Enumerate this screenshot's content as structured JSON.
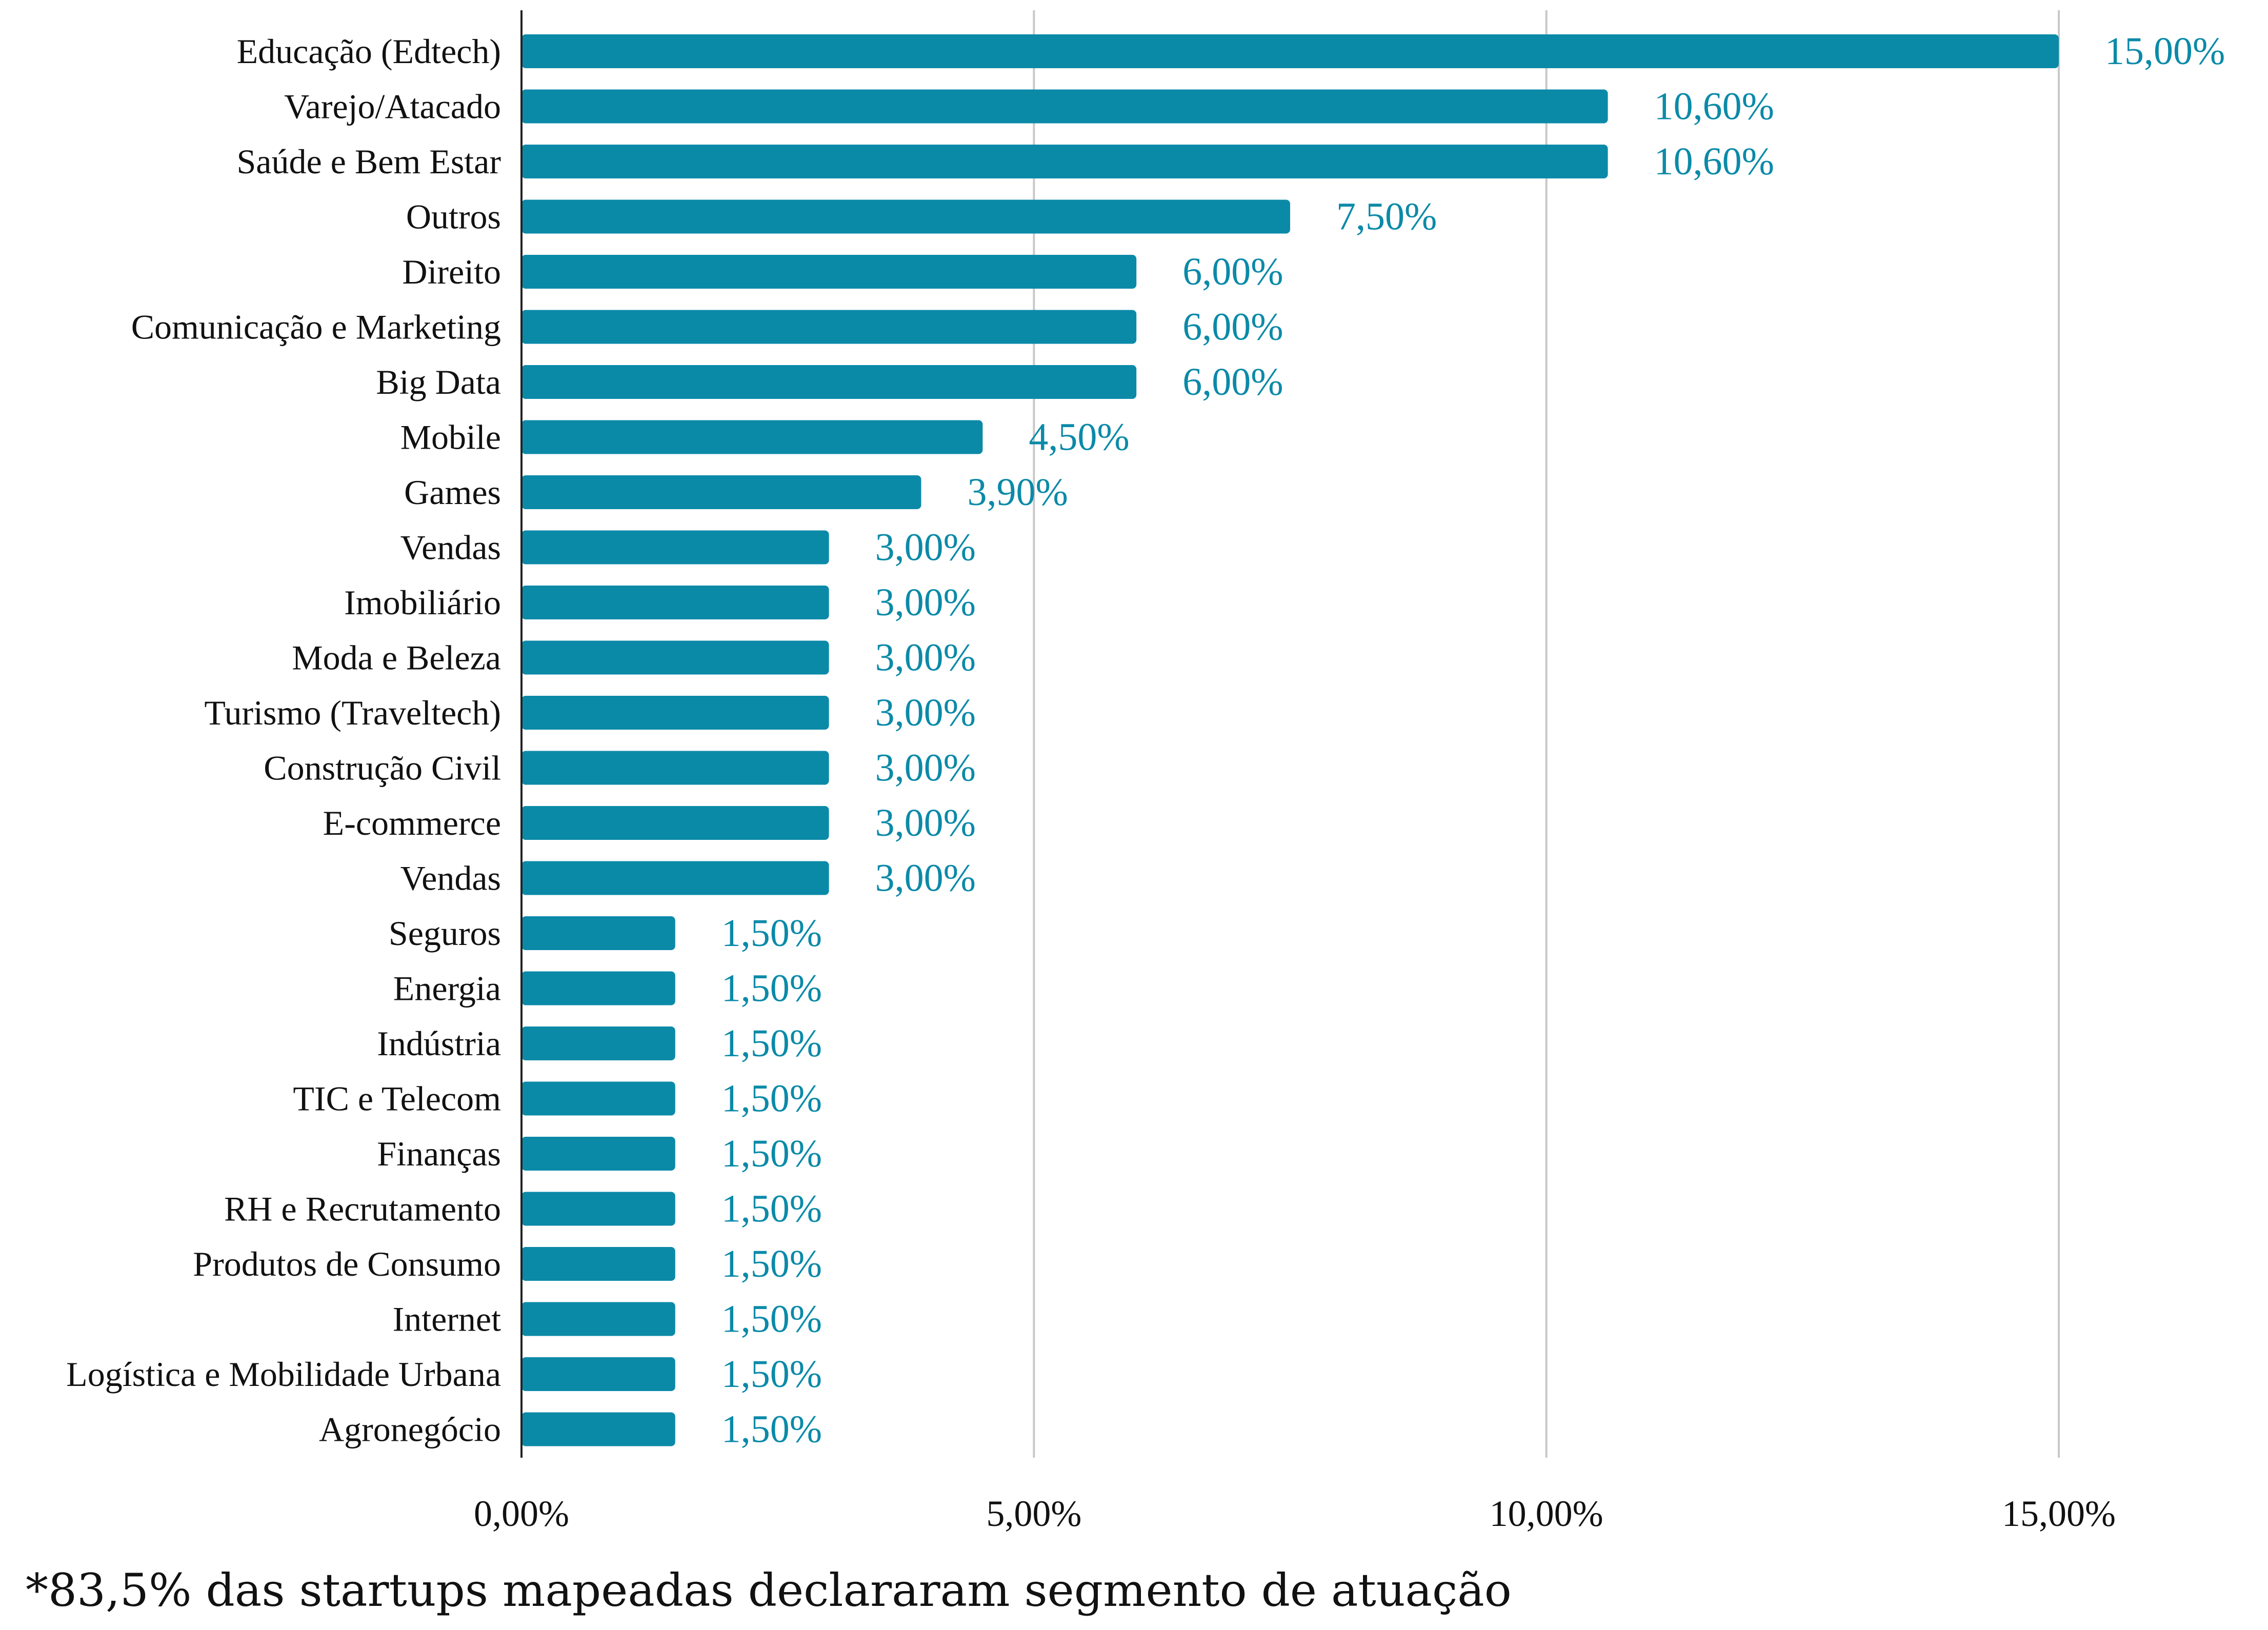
{
  "chart_data": {
    "type": "bar",
    "orientation": "horizontal",
    "title": "",
    "xlabel": "",
    "ylabel": "",
    "categories": [
      "Educação (Edtech)",
      "Varejo/Atacado",
      "Saúde e Bem Estar",
      "Outros",
      "Direito",
      "Comunicação e Marketing",
      "Big Data",
      "Mobile",
      "Games",
      "Vendas",
      "Imobiliário",
      "Moda e Beleza",
      "Turismo (Traveltech)",
      "Construção Civil",
      "E-commerce",
      "Vendas",
      "Seguros",
      "Energia",
      "Indústria",
      "TIC e Telecom",
      "Finanças",
      "RH e Recrutamento",
      "Produtos de Consumo",
      "Internet",
      "Logística e Mobilidade Urbana",
      "Agronegócio"
    ],
    "values": [
      15.0,
      10.6,
      10.6,
      7.5,
      6.0,
      6.0,
      6.0,
      4.5,
      3.9,
      3.0,
      3.0,
      3.0,
      3.0,
      3.0,
      3.0,
      3.0,
      1.5,
      1.5,
      1.5,
      1.5,
      1.5,
      1.5,
      1.5,
      1.5,
      1.5,
      1.5
    ],
    "value_labels": [
      "15,00%",
      "10,60%",
      "10,60%",
      "7,50%",
      "6,00%",
      "6,00%",
      "6,00%",
      "4,50%",
      "3,90%",
      "3,00%",
      "3,00%",
      "3,00%",
      "3,00%",
      "3,00%",
      "3,00%",
      "3,00%",
      "1,50%",
      "1,50%",
      "1,50%",
      "1,50%",
      "1,50%",
      "1,50%",
      "1,50%",
      "1,50%",
      "1,50%",
      "1,50%"
    ],
    "xlim": [
      0,
      15
    ],
    "xticks": [
      0,
      5,
      10,
      15
    ],
    "xtick_labels": [
      "0,00%",
      "5,00%",
      "10,00%",
      "15,00%"
    ],
    "grid": "vertical",
    "legend": "none",
    "bar_color": "#0b8aa8",
    "label_color": "#0b8aa8",
    "grid_color": "#c8c8c8"
  },
  "footnote": "*83,5% das startups mapeadas declararam segmento de atuação"
}
